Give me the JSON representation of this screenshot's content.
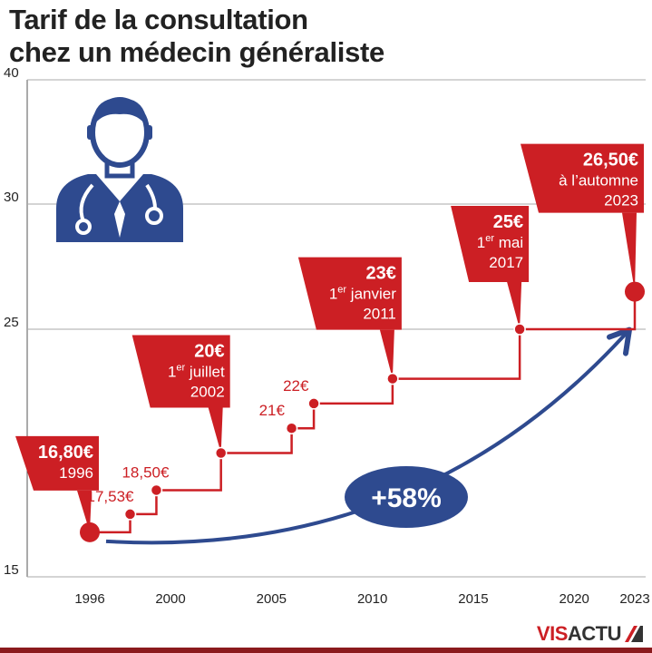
{
  "title_lines": [
    "Tarif de la consultation",
    "chez un médecin généraliste"
  ],
  "colors": {
    "accent": "#cc1f24",
    "arrow": "#2e4a8f",
    "icon": "#2e4a8f",
    "grid": "#aaaaaa"
  },
  "icon": "doctor-icon",
  "logo": {
    "part1": "VIS",
    "part2": "ACTU",
    "mark": "logo-slash-icon"
  },
  "chart_data": {
    "type": "line",
    "step": true,
    "title": "Tarif de la consultation chez un médecin généraliste",
    "xlabel": "",
    "ylabel": "",
    "xlim": [
      1993,
      2023.5
    ],
    "ylim": [
      15,
      40
    ],
    "x_ticks": [
      {
        "value": 1996,
        "label": "1996"
      },
      {
        "value": 2000,
        "label": "2000"
      },
      {
        "value": 2005,
        "label": "2005"
      },
      {
        "value": 2010,
        "label": "2010"
      },
      {
        "value": 2015,
        "label": "2015"
      },
      {
        "value": 2020,
        "label": "2020"
      },
      {
        "value": 2023,
        "label": "2023"
      }
    ],
    "y_ticks": [
      {
        "value": 15,
        "label": "15"
      },
      {
        "value": 25,
        "label": "25"
      },
      {
        "value": 30,
        "label": "30"
      },
      {
        "value": 40,
        "label": "40"
      }
    ],
    "grid": true,
    "growth_label": "+58%",
    "series": [
      {
        "points": [
          {
            "x": 1996.0,
            "y": 16.8,
            "price": "16,80€",
            "lines": [
              "1996"
            ],
            "boxed": true,
            "side": "left"
          },
          {
            "x": 1998.0,
            "y": 17.53,
            "price": "17,53€",
            "lines": [],
            "boxed": false
          },
          {
            "x": 1999.3,
            "y": 18.5,
            "price": "18,50€",
            "lines": [],
            "boxed": false
          },
          {
            "x": 2002.5,
            "y": 20.0,
            "price": "20€",
            "lines": [
              {
                "pre": "1",
                "sup": "er",
                "post": " juillet"
              },
              "2002"
            ],
            "boxed": true,
            "side": "left"
          },
          {
            "x": 2006.0,
            "y": 21.0,
            "price": "21€",
            "lines": [],
            "boxed": false
          },
          {
            "x": 2007.1,
            "y": 22.0,
            "price": "22€",
            "lines": [],
            "boxed": false
          },
          {
            "x": 2011.0,
            "y": 23.0,
            "price": "23€",
            "lines": [
              {
                "pre": "1",
                "sup": "er",
                "post": " janvier"
              },
              "2011"
            ],
            "boxed": true,
            "side": "left"
          },
          {
            "x": 2017.3,
            "y": 25.0,
            "price": "25€",
            "lines": [
              {
                "pre": "1",
                "sup": "er",
                "post": " mai"
              },
              "2017"
            ],
            "boxed": true,
            "side": "left"
          },
          {
            "x": 2023.0,
            "y": 26.5,
            "price": "26,50€",
            "lines": [
              "à l’automne",
              "2023"
            ],
            "boxed": true,
            "side": "left",
            "big_dot": true
          }
        ]
      }
    ]
  }
}
